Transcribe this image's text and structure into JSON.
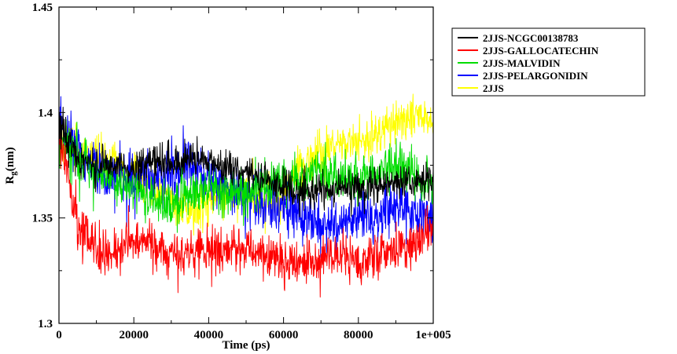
{
  "chart_data": {
    "type": "line",
    "title": "",
    "xlabel": "Time (ps)",
    "ylabel": "Rg(nm)",
    "ylabel_main": "R",
    "ylabel_sub": "g",
    "ylabel_unit": "(nm)",
    "xlim": [
      0,
      100000
    ],
    "ylim": [
      1.3,
      1.45
    ],
    "xticks": [
      0,
      20000,
      40000,
      60000,
      80000,
      100000
    ],
    "xtick_labels": [
      "0",
      "20000",
      "40000",
      "60000",
      "80000",
      "1e+005"
    ],
    "yticks": [
      1.3,
      1.35,
      1.4,
      1.45
    ],
    "ytick_labels": [
      "1.3",
      "1.35",
      "1.4",
      "1.45"
    ],
    "grid": false,
    "legend_position": "right-outside",
    "series": [
      {
        "name": "2JJS-NCGC00138783",
        "color": "#000000",
        "noise": 0.004,
        "x": [
          0,
          5000,
          10000,
          15000,
          20000,
          25000,
          30000,
          35000,
          40000,
          45000,
          50000,
          55000,
          60000,
          65000,
          70000,
          75000,
          80000,
          85000,
          90000,
          95000,
          100000
        ],
        "y": [
          1.395,
          1.378,
          1.375,
          1.375,
          1.373,
          1.377,
          1.375,
          1.378,
          1.376,
          1.374,
          1.372,
          1.368,
          1.363,
          1.362,
          1.363,
          1.364,
          1.365,
          1.365,
          1.366,
          1.368,
          1.368
        ]
      },
      {
        "name": "2JJS-GALLOCATECHIN",
        "color": "#ff0000",
        "noise": 0.0055,
        "x": [
          0,
          5000,
          10000,
          15000,
          20000,
          25000,
          30000,
          35000,
          40000,
          45000,
          50000,
          55000,
          60000,
          65000,
          70000,
          75000,
          80000,
          85000,
          90000,
          95000,
          100000
        ],
        "y": [
          1.392,
          1.345,
          1.335,
          1.333,
          1.34,
          1.338,
          1.332,
          1.333,
          1.334,
          1.336,
          1.334,
          1.333,
          1.33,
          1.328,
          1.33,
          1.333,
          1.328,
          1.332,
          1.335,
          1.338,
          1.345
        ]
      },
      {
        "name": "2JJS-MALVIDIN",
        "color": "#00dd00",
        "noise": 0.0055,
        "x": [
          0,
          5000,
          10000,
          15000,
          20000,
          25000,
          30000,
          35000,
          40000,
          45000,
          50000,
          55000,
          60000,
          65000,
          70000,
          75000,
          80000,
          85000,
          90000,
          95000,
          100000
        ],
        "y": [
          1.39,
          1.378,
          1.372,
          1.368,
          1.365,
          1.358,
          1.355,
          1.362,
          1.365,
          1.363,
          1.362,
          1.365,
          1.367,
          1.368,
          1.372,
          1.37,
          1.368,
          1.372,
          1.375,
          1.372,
          1.365
        ]
      },
      {
        "name": "2JJS-PELARGONIDIN",
        "color": "#0000ff",
        "noise": 0.006,
        "x": [
          0,
          5000,
          10000,
          15000,
          20000,
          25000,
          30000,
          35000,
          40000,
          45000,
          50000,
          55000,
          60000,
          65000,
          70000,
          75000,
          80000,
          85000,
          90000,
          95000,
          100000
        ],
        "y": [
          1.395,
          1.38,
          1.372,
          1.368,
          1.368,
          1.37,
          1.372,
          1.375,
          1.37,
          1.365,
          1.36,
          1.356,
          1.355,
          1.35,
          1.345,
          1.348,
          1.35,
          1.352,
          1.355,
          1.352,
          1.35
        ]
      },
      {
        "name": "2JJS",
        "color": "#ffff00",
        "noise": 0.005,
        "x": [
          0,
          5000,
          10000,
          15000,
          20000,
          25000,
          30000,
          35000,
          40000,
          45000,
          50000,
          55000,
          60000,
          65000,
          70000,
          75000,
          80000,
          85000,
          90000,
          95000,
          100000
        ],
        "y": [
          1.385,
          1.384,
          1.38,
          1.375,
          1.37,
          1.365,
          1.358,
          1.353,
          1.358,
          1.362,
          1.36,
          1.356,
          1.36,
          1.378,
          1.38,
          1.385,
          1.385,
          1.39,
          1.395,
          1.4,
          1.395
        ]
      }
    ]
  }
}
